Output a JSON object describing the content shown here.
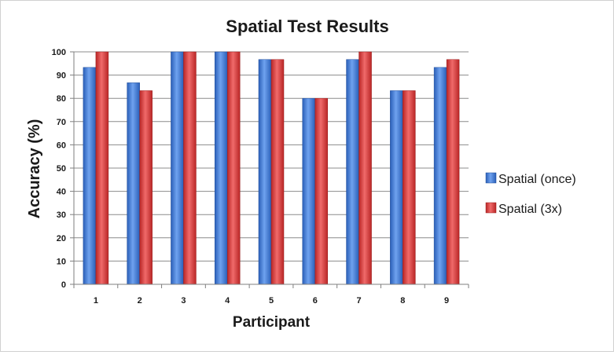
{
  "chart_data": {
    "type": "bar",
    "title": "Spatial Test Results",
    "xlabel": "Participant",
    "ylabel": "Accuracy (%)",
    "categories": [
      "1",
      "2",
      "3",
      "4",
      "5",
      "6",
      "7",
      "8",
      "9"
    ],
    "series": [
      {
        "name": "Spatial (once)",
        "color": "#3d77d6",
        "values": [
          93.3,
          86.7,
          100,
          100,
          96.7,
          80,
          96.7,
          83.3,
          93.3
        ]
      },
      {
        "name": "Spatial (3x)",
        "color": "#d93a3a",
        "values": [
          100,
          83.3,
          100,
          100,
          96.7,
          80,
          100,
          83.3,
          96.7
        ]
      }
    ],
    "ylim": [
      0,
      100
    ],
    "yticks": [
      "0",
      "10",
      "20",
      "30",
      "40",
      "50",
      "60",
      "70",
      "80",
      "90",
      "100"
    ],
    "grid": true,
    "legend_position": "right"
  }
}
